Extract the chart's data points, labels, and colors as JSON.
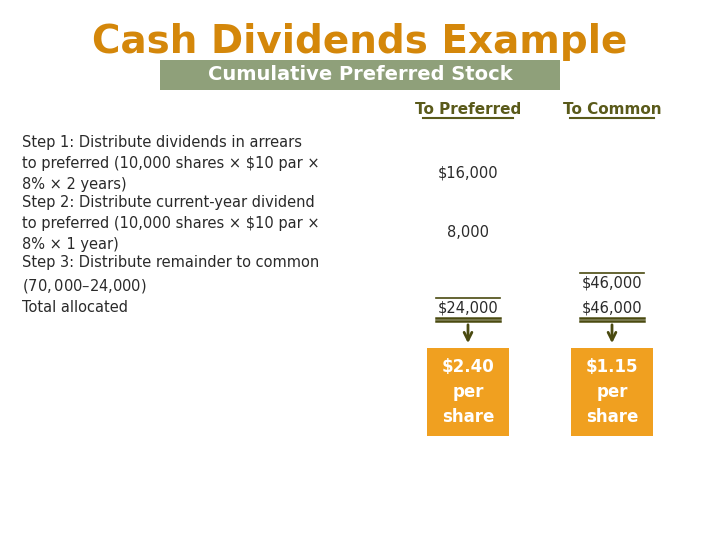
{
  "title": "Cash Dividends Example",
  "title_color": "#D4870A",
  "subtitle": "Cumulative Preferred Stock",
  "subtitle_bg": "#8FA07A",
  "subtitle_text_color": "#FFFFFF",
  "col_header_preferred": "To Preferred",
  "col_header_common": "To Common",
  "col_header_color": "#5A5A1A",
  "background_color": "#FFFFFF",
  "rows": [
    {
      "label": "Step 1: Distribute dividends in arrears\nto preferred (10,000 shares × $10 par ×\n8% × 2 years)",
      "preferred": "$16,000",
      "common": ""
    },
    {
      "label": "Step 2: Distribute current-year dividend\nto preferred (10,000 shares × $10 par ×\n8% × 1 year)",
      "preferred": "8,000",
      "common": ""
    },
    {
      "label": "Step 3: Distribute remainder to common\n($70,000 – $24,000)",
      "preferred": "",
      "common": "$46,000"
    },
    {
      "label": "Total allocated",
      "preferred": "$24,000",
      "common": "$46,000",
      "is_total": true
    }
  ],
  "box_preferred_text": "$2.40\nper\nshare",
  "box_common_text": "$1.15\nper\nshare",
  "box_color": "#F0A020",
  "box_text_color": "#FFFFFF",
  "text_color": "#2A2A2A",
  "line_color": "#4A4A10"
}
